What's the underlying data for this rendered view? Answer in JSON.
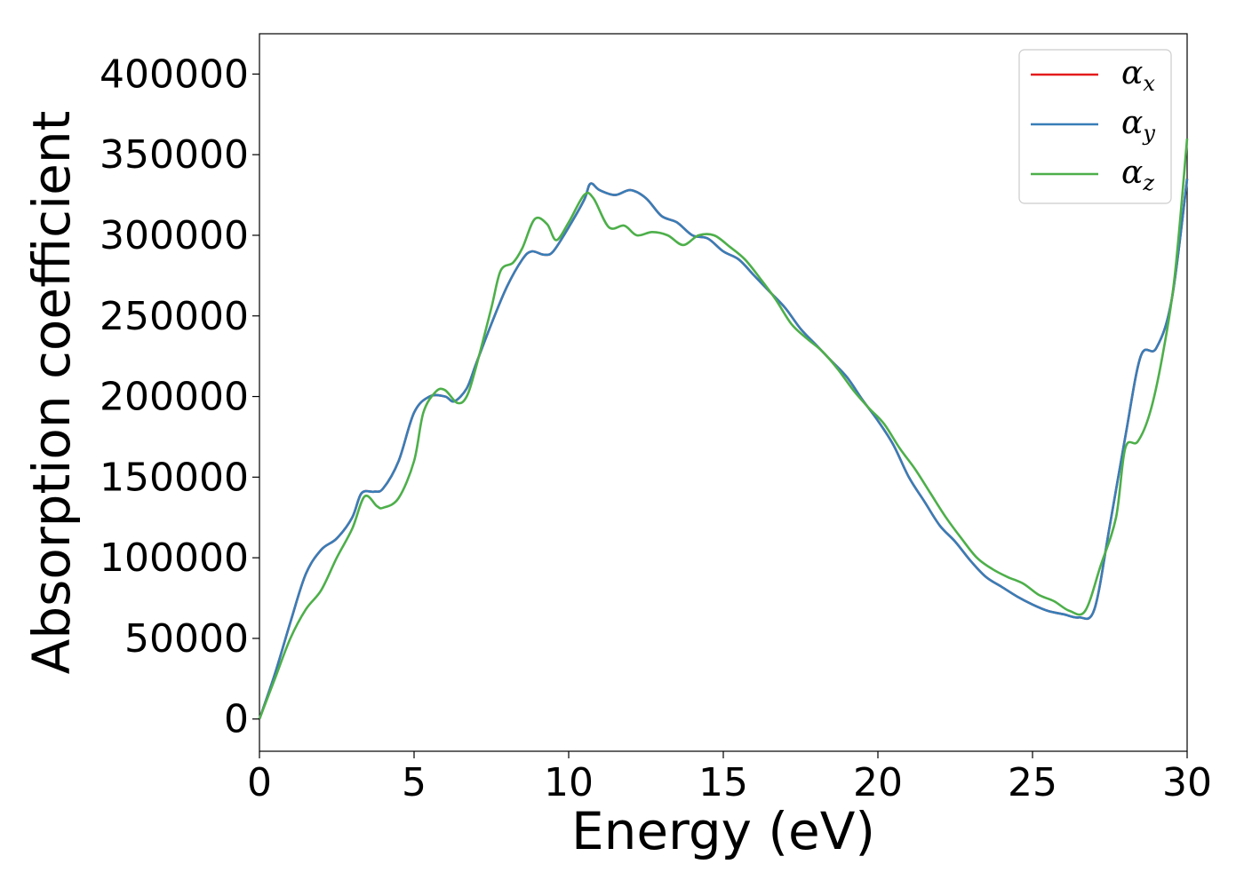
{
  "chart_data": {
    "type": "line",
    "xlabel": "Energy (eV)",
    "ylabel": "Absorption coefficient",
    "xlim": [
      0,
      30
    ],
    "ylim": [
      -20000,
      425000
    ],
    "xticks": [
      0,
      5,
      10,
      15,
      20,
      25,
      30
    ],
    "yticks": [
      0,
      50000,
      100000,
      150000,
      200000,
      250000,
      300000,
      350000,
      400000
    ],
    "x_tick_labels": [
      "0",
      "5",
      "10",
      "15",
      "20",
      "25",
      "30"
    ],
    "y_tick_labels": [
      "0",
      "50000",
      "100000",
      "150000",
      "200000",
      "250000",
      "300000",
      "350000",
      "400000"
    ],
    "grid": false,
    "legend_position": "top-right",
    "series": [
      {
        "name": "αx",
        "label_main": "α",
        "label_sub": "x",
        "color": "#e41a1c",
        "x": [
          0,
          0.5,
          1,
          1.5,
          2,
          2.5,
          3,
          3.3,
          3.7,
          4,
          4.5,
          5,
          5.5,
          6,
          6.3,
          6.7,
          7,
          7.5,
          8,
          8.5,
          8.8,
          9.2,
          9.5,
          10,
          10.5,
          10.7,
          11,
          11.5,
          12,
          12.5,
          13,
          13.5,
          14,
          14.5,
          15,
          15.5,
          16,
          16.5,
          17,
          17.5,
          18,
          18.5,
          19,
          19.5,
          20,
          20.5,
          21,
          21.5,
          22,
          22.5,
          23,
          23.5,
          24,
          24.5,
          25,
          25.5,
          26,
          26.5,
          27,
          27.5,
          28,
          28.5,
          29,
          29.5,
          30
        ],
        "y": [
          0,
          28000,
          60000,
          90000,
          105000,
          112000,
          125000,
          140000,
          141000,
          143000,
          160000,
          190000,
          200000,
          200000,
          197000,
          205000,
          220000,
          245000,
          268000,
          285000,
          290000,
          288000,
          290000,
          305000,
          322000,
          332000,
          328000,
          325000,
          328000,
          323000,
          312000,
          308000,
          300000,
          298000,
          290000,
          285000,
          275000,
          265000,
          255000,
          242000,
          232000,
          222000,
          212000,
          198000,
          185000,
          170000,
          150000,
          135000,
          120000,
          110000,
          98000,
          88000,
          82000,
          76000,
          71000,
          67000,
          65000,
          63000,
          68000,
          120000,
          175000,
          225000,
          230000,
          260000,
          335000
        ]
      },
      {
        "name": "αy",
        "label_main": "α",
        "label_sub": "y",
        "color": "#377eb8",
        "x": [
          0,
          0.5,
          1,
          1.5,
          2,
          2.5,
          3,
          3.3,
          3.7,
          4,
          4.5,
          5,
          5.5,
          6,
          6.3,
          6.7,
          7,
          7.5,
          8,
          8.5,
          8.8,
          9.2,
          9.5,
          10,
          10.5,
          10.7,
          11,
          11.5,
          12,
          12.5,
          13,
          13.5,
          14,
          14.5,
          15,
          15.5,
          16,
          16.5,
          17,
          17.5,
          18,
          18.5,
          19,
          19.5,
          20,
          20.5,
          21,
          21.5,
          22,
          22.5,
          23,
          23.5,
          24,
          24.5,
          25,
          25.5,
          26,
          26.5,
          27,
          27.5,
          28,
          28.5,
          29,
          29.5,
          30
        ],
        "y": [
          0,
          28000,
          60000,
          90000,
          105000,
          112000,
          125000,
          140000,
          141000,
          143000,
          160000,
          190000,
          200000,
          200000,
          197000,
          205000,
          220000,
          245000,
          268000,
          285000,
          290000,
          288000,
          290000,
          305000,
          322000,
          332000,
          328000,
          325000,
          328000,
          323000,
          312000,
          308000,
          300000,
          298000,
          290000,
          285000,
          275000,
          265000,
          255000,
          242000,
          232000,
          222000,
          212000,
          198000,
          185000,
          170000,
          150000,
          135000,
          120000,
          110000,
          98000,
          88000,
          82000,
          76000,
          71000,
          67000,
          65000,
          63000,
          68000,
          120000,
          175000,
          225000,
          230000,
          260000,
          335000
        ]
      },
      {
        "name": "αz",
        "label_main": "α",
        "label_sub": "z",
        "color": "#4daf4a",
        "x": [
          0,
          0.5,
          1,
          1.5,
          2,
          2.5,
          3,
          3.4,
          3.8,
          4,
          4.5,
          5,
          5.3,
          5.7,
          6,
          6.4,
          6.7,
          7,
          7.5,
          7.8,
          8.2,
          8.5,
          8.9,
          9.3,
          9.6,
          10,
          10.5,
          10.8,
          11.3,
          11.8,
          12.2,
          12.7,
          13.2,
          13.7,
          14.2,
          14.7,
          15.2,
          15.7,
          16.2,
          16.7,
          17.2,
          17.7,
          18.2,
          18.7,
          19.2,
          19.7,
          20.2,
          20.7,
          21.2,
          21.7,
          22.2,
          22.7,
          23.2,
          23.7,
          24.2,
          24.7,
          25.2,
          25.7,
          26.2,
          26.7,
          27.2,
          27.7,
          28,
          28.4,
          28.8,
          29.2,
          29.6,
          30
        ],
        "y": [
          0,
          25000,
          50000,
          68000,
          80000,
          100000,
          118000,
          138000,
          132000,
          131000,
          137000,
          160000,
          190000,
          203000,
          204000,
          196000,
          200000,
          218000,
          255000,
          278000,
          283000,
          292000,
          310000,
          307000,
          297000,
          308000,
          325000,
          323000,
          305000,
          306000,
          300000,
          302000,
          300000,
          294000,
          300000,
          300000,
          293000,
          285000,
          273000,
          260000,
          245000,
          236000,
          228000,
          217000,
          204000,
          193000,
          183000,
          168000,
          155000,
          140000,
          125000,
          112000,
          100000,
          93000,
          88000,
          84000,
          77000,
          73000,
          67000,
          67000,
          95000,
          125000,
          168000,
          172000,
          190000,
          225000,
          275000,
          360000
        ]
      }
    ]
  }
}
